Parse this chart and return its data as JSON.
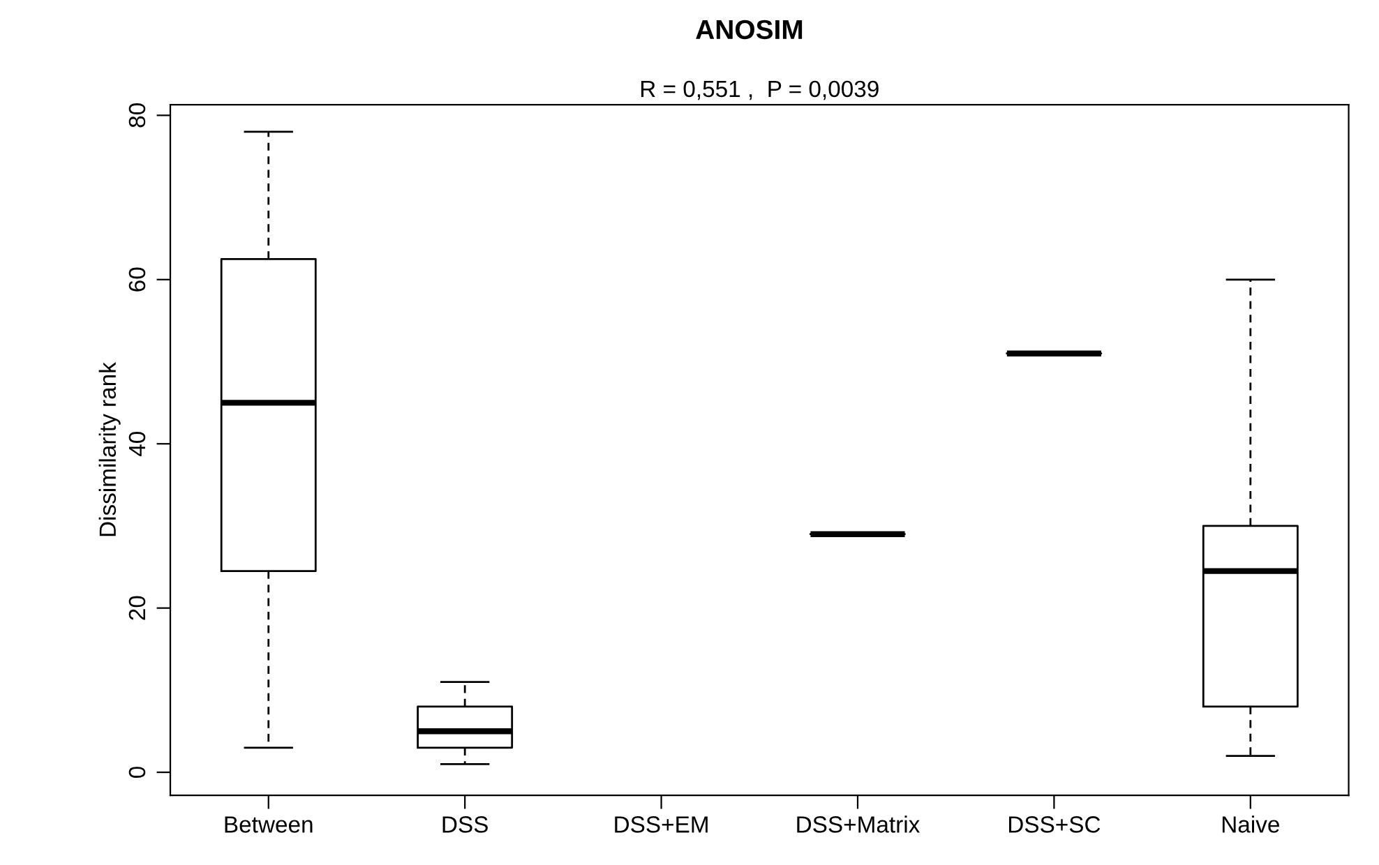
{
  "chart_data": {
    "type": "box",
    "title": "ANOSIM",
    "subtitle": "R = 0,551 ,  P = 0,0039",
    "ylabel": "Dissimilarity rank",
    "categories": [
      "Between",
      "DSS",
      "DSS+EM",
      "DSS+Matrix",
      "DSS+SC",
      "Naive"
    ],
    "boxes": [
      {
        "low": 3,
        "q1": 24.5,
        "median": 45,
        "q3": 62.5,
        "high": 78
      },
      {
        "low": 1,
        "q1": 3,
        "median": 5,
        "q3": 8,
        "high": 11
      },
      null,
      {
        "low": 29,
        "q1": 29,
        "median": 29,
        "q3": 29,
        "high": 29
      },
      {
        "low": 51,
        "q1": 51,
        "median": 51,
        "q3": 51,
        "high": 51
      },
      {
        "low": 2,
        "q1": 8,
        "median": 24.5,
        "q3": 30,
        "high": 60
      }
    ],
    "ylim": [
      -2.8,
      81.3
    ],
    "yticks": [
      0,
      20,
      40,
      60,
      80
    ],
    "grid": false,
    "legend": false,
    "line_style": "dashed"
  }
}
